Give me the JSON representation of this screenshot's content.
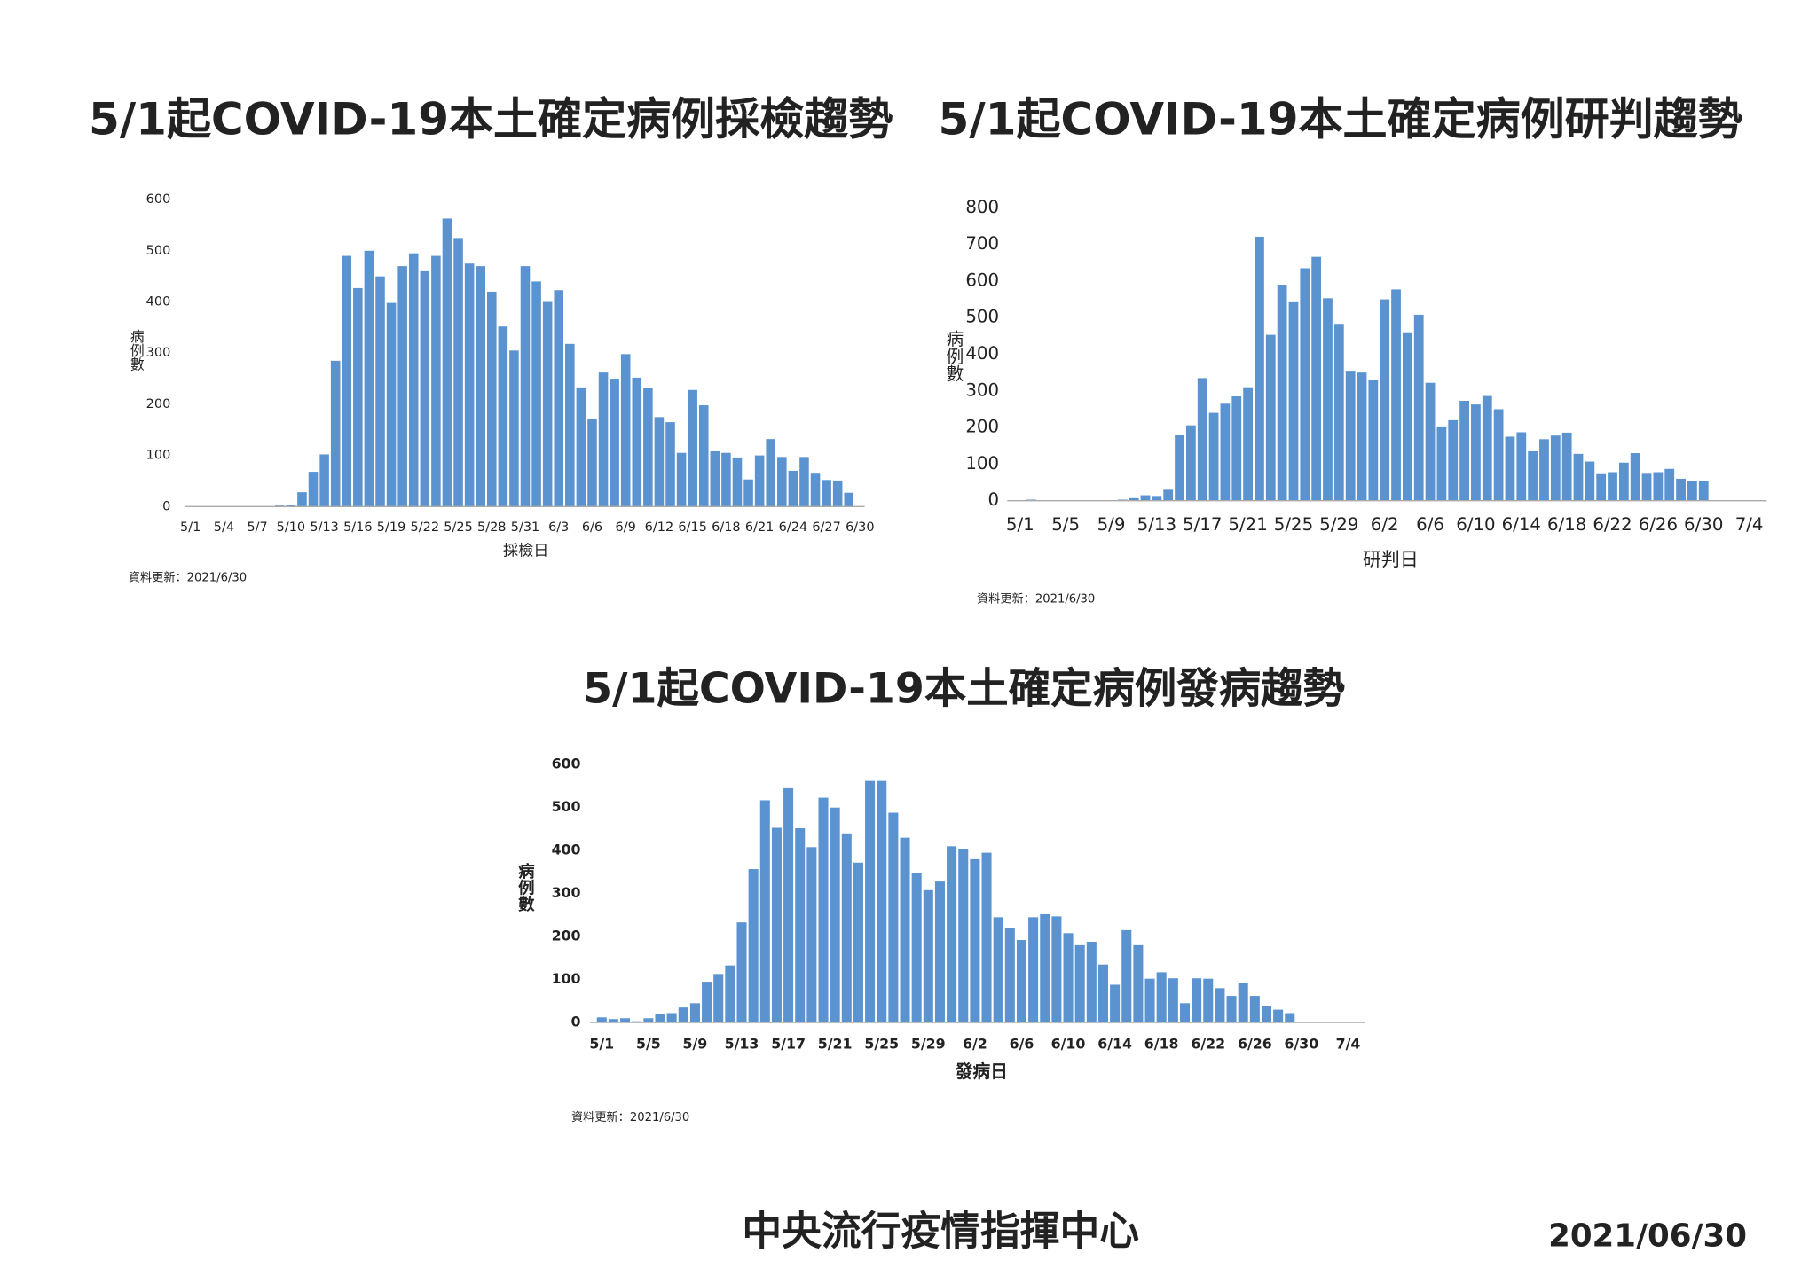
{
  "chart_data": [
    {
      "type": "bar",
      "title": "5/1起COVID-19本土確定病例採檢趨勢",
      "x_label": "採檢日",
      "y_label": "病例數",
      "note": "資料更新：2021/6/30",
      "color": "#5a93cf",
      "categories": [
        "5/1",
        null,
        null,
        "5/4",
        null,
        null,
        "5/7",
        null,
        null,
        "5/10",
        null,
        null,
        "5/13",
        null,
        null,
        "5/16",
        null,
        null,
        "5/19",
        null,
        null,
        "5/22",
        null,
        null,
        "5/25",
        null,
        null,
        "5/28",
        null,
        null,
        "5/31",
        null,
        null,
        "6/3",
        null,
        null,
        "6/6",
        null,
        null,
        "6/9",
        null,
        null,
        "6/12",
        null,
        null,
        "6/15",
        null,
        null,
        "6/18",
        null,
        null,
        "6/21",
        null,
        null,
        "6/24",
        null,
        null,
        "6/27",
        null,
        null,
        "6/30"
      ],
      "values": [
        0,
        0,
        0,
        0,
        0,
        0,
        0,
        0,
        2,
        3,
        28,
        68,
        102,
        285,
        490,
        427,
        500,
        450,
        398,
        470,
        495,
        460,
        490,
        563,
        525,
        475,
        470,
        420,
        352,
        305,
        470,
        440,
        400,
        423,
        318,
        233,
        172,
        262,
        250,
        298,
        252,
        232,
        175,
        165,
        105,
        228,
        198,
        108,
        105,
        96,
        53,
        100,
        132,
        97,
        70,
        97,
        66,
        52,
        51,
        27,
        0
      ],
      "ylim": [
        0,
        600
      ],
      "yticks": [
        0,
        100,
        200,
        300,
        400,
        500,
        600
      ]
    },
    {
      "type": "bar",
      "title": "5/1起COVID-19本土確定病例研判趨勢",
      "x_label": "研判日",
      "y_label": "病例數",
      "note": "資料更新：2021/6/30",
      "color": "#5a93cf",
      "categories": [
        "5/1",
        null,
        null,
        null,
        "5/5",
        null,
        null,
        null,
        "5/9",
        null,
        null,
        null,
        "5/13",
        null,
        null,
        null,
        "5/17",
        null,
        null,
        null,
        "5/21",
        null,
        null,
        null,
        "5/25",
        null,
        null,
        null,
        "5/29",
        null,
        null,
        null,
        "6/2",
        null,
        null,
        null,
        "6/6",
        null,
        null,
        null,
        "6/10",
        null,
        null,
        null,
        "6/14",
        null,
        null,
        null,
        "6/18",
        null,
        null,
        null,
        "6/22",
        null,
        null,
        null,
        "6/26",
        null,
        null,
        null,
        "6/30",
        null,
        null,
        null,
        "7/4"
      ],
      "values": [
        0,
        3,
        0,
        0,
        0,
        0,
        0,
        0,
        0,
        3,
        7,
        15,
        13,
        30,
        180,
        206,
        335,
        240,
        265,
        285,
        310,
        721,
        453,
        590,
        542,
        635,
        666,
        553,
        483,
        355,
        350,
        330,
        550,
        577,
        460,
        508,
        322,
        203,
        220,
        273,
        263,
        286,
        250,
        175,
        187,
        135,
        168,
        178,
        186,
        128,
        107,
        75,
        78,
        104,
        130,
        76,
        78,
        87,
        60,
        55,
        55,
        0,
        0,
        0,
        0
      ],
      "ylim": [
        0,
        800
      ],
      "yticks": [
        0,
        100,
        200,
        300,
        400,
        500,
        600,
        700,
        800
      ]
    },
    {
      "type": "bar",
      "title": "5/1起COVID-19本土確定病例發病趨勢",
      "x_label": "發病日",
      "y_label": "病例數",
      "note": "資料更新：2021/6/30",
      "color": "#5a93cf",
      "categories": [
        "5/1",
        null,
        null,
        null,
        "5/5",
        null,
        null,
        null,
        "5/9",
        null,
        null,
        null,
        "5/13",
        null,
        null,
        null,
        "5/17",
        null,
        null,
        null,
        "5/21",
        null,
        null,
        null,
        "5/25",
        null,
        null,
        null,
        "5/29",
        null,
        null,
        null,
        "6/2",
        null,
        null,
        null,
        "6/6",
        null,
        null,
        null,
        "6/10",
        null,
        null,
        null,
        "6/14",
        null,
        null,
        null,
        "6/18",
        null,
        null,
        null,
        "6/22",
        null,
        null,
        null,
        "6/26",
        null,
        null,
        null,
        "6/30",
        null,
        null,
        null,
        "7/4"
      ],
      "values": [
        12,
        8,
        10,
        3,
        10,
        20,
        22,
        35,
        45,
        95,
        113,
        133,
        233,
        357,
        517,
        453,
        545,
        452,
        408,
        523,
        500,
        440,
        372,
        562,
        562,
        488,
        430,
        348,
        308,
        328,
        410,
        403,
        380,
        395,
        245,
        220,
        192,
        245,
        252,
        247,
        208,
        180,
        188,
        135,
        88,
        215,
        180,
        102,
        117,
        103,
        45,
        103,
        102,
        80,
        62,
        93,
        62,
        38,
        30,
        22,
        0,
        0,
        0,
        0,
        0
      ],
      "ylim": [
        0,
        600
      ],
      "yticks": [
        0,
        100,
        200,
        300,
        400,
        500,
        600
      ]
    }
  ],
  "footer": {
    "org": "中央流行疫情指揮中心",
    "date": "2021/06/30"
  }
}
